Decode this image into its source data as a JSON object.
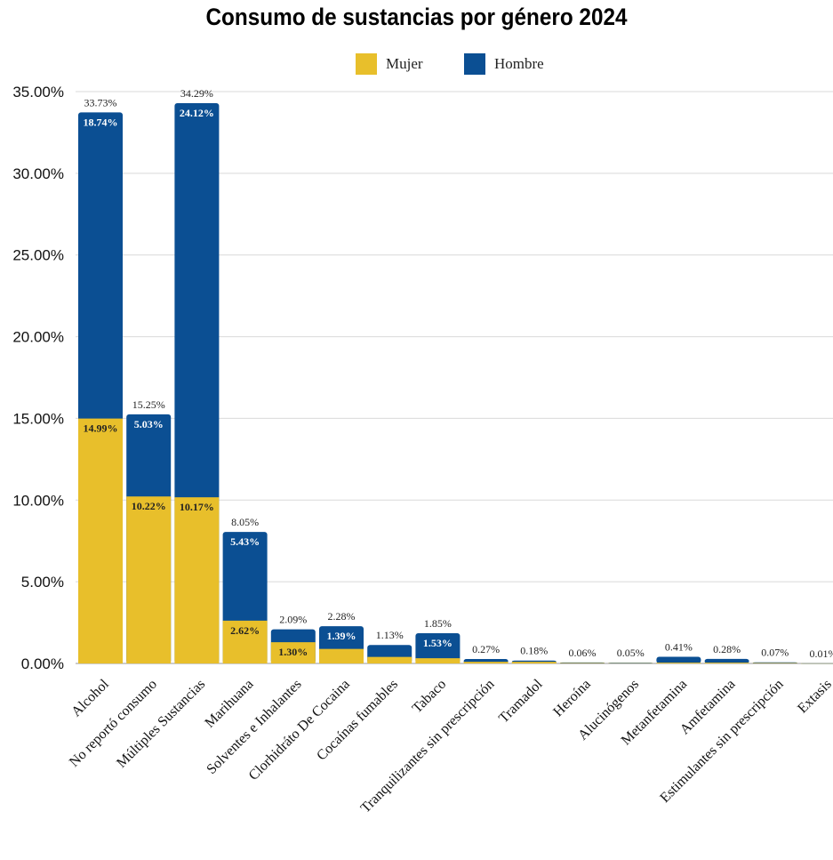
{
  "chart_data": {
    "type": "bar",
    "stacked": true,
    "title": "Consumo de sustancias por género 2024",
    "ylim": [
      0,
      35
    ],
    "yticks": [
      "0.00%",
      "5.00%",
      "10.00%",
      "15.00%",
      "20.00%",
      "25.00%",
      "30.00%",
      "35.00%"
    ],
    "grid": true,
    "legend_position": "top-center",
    "categories": [
      "Alcohol",
      "No reportó consumo",
      "Múltiples Sustancias",
      "Marihuana",
      "Solventes e Inhalantes",
      "Clorhidráto De Cocaina",
      "Cocaínas fumables",
      "Tabaco",
      "Tranquilizantes sin prescripción",
      "Tramadol",
      "Heroína",
      "Alucinógenos",
      "Metanfetamina",
      "Amfetamina",
      "Estimulantes sin prescripción",
      "Extasis"
    ],
    "series": [
      {
        "name": "Mujer",
        "color": "#e8bf2b",
        "values": [
          14.99,
          10.22,
          10.17,
          2.62,
          1.3,
          0.89,
          0.4,
          0.32,
          0.1,
          0.1,
          0.03,
          0.02,
          0.05,
          0.05,
          0.03,
          0.005
        ],
        "labels": [
          "14.99%",
          "10.22%",
          "10.17%",
          "2.62%",
          "1.30%",
          "",
          "",
          "",
          "",
          "",
          "",
          "",
          "",
          "",
          "",
          ""
        ]
      },
      {
        "name": "Hombre",
        "color": "#0b4f93",
        "values": [
          18.74,
          5.03,
          24.12,
          5.43,
          0.79,
          1.39,
          0.73,
          1.53,
          0.17,
          0.08,
          0.03,
          0.03,
          0.36,
          0.23,
          0.04,
          0.005
        ],
        "labels": [
          "18.74%",
          "5.03%",
          "24.12%",
          "5.43%",
          "",
          "1.39%",
          "",
          "1.53%",
          "",
          "",
          "",
          "",
          "",
          "",
          "",
          ""
        ]
      }
    ],
    "totals": [
      "33.73%",
      "15.25%",
      "34.29%",
      "8.05%",
      "2.09%",
      "2.28%",
      "1.13%",
      "1.85%",
      "0.27%",
      "0.18%",
      "0.06%",
      "0.05%",
      "0.41%",
      "0.28%",
      "0.07%",
      "0.01%"
    ],
    "total_values": [
      33.73,
      15.25,
      34.29,
      8.05,
      2.09,
      2.28,
      1.13,
      1.85,
      0.27,
      0.18,
      0.06,
      0.05,
      0.41,
      0.28,
      0.07,
      0.01
    ]
  }
}
